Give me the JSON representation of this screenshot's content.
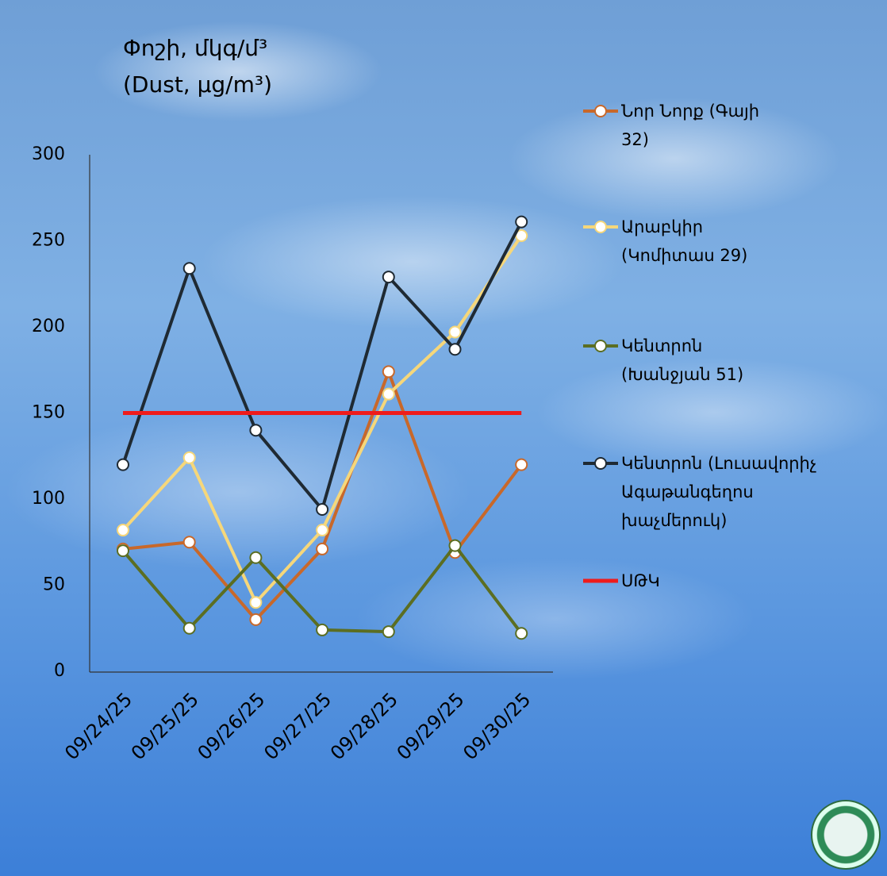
{
  "chart_data": {
    "type": "line",
    "title": "Փոշի, մկգ/մ³",
    "subtitle": "(Dust, µg/m³)",
    "categories": [
      "09/24/25",
      "09/25/25",
      "09/26/25",
      "09/27/25",
      "09/28/25",
      "09/29/25",
      "09/30/25"
    ],
    "series": [
      {
        "name": "Նոր Նորք (Գայի 32)",
        "color": "#c8682a",
        "values": [
          71,
          75,
          30,
          71,
          174,
          69,
          120
        ]
      },
      {
        "name": "Արաբկիր (Կոմիտաս 29)",
        "color": "#f6d77a",
        "values": [
          82,
          124,
          40,
          82,
          161,
          197,
          253
        ]
      },
      {
        "name": "Կենտրոն (Խանջյան 51)",
        "color": "#5b6e22",
        "values": [
          70,
          25,
          66,
          24,
          23,
          73,
          22
        ]
      },
      {
        "name": "Կենտրոն (Լուսավորիչ Ագաթանգեղոս խաչմերուկ)",
        "color": "#1f2a33",
        "values": [
          120,
          234,
          140,
          94,
          229,
          187,
          261
        ]
      },
      {
        "name": "ՍԹԿ",
        "color": "#ee1c1c",
        "values": [
          150,
          150,
          150,
          150,
          150,
          150,
          150
        ],
        "markers": false
      }
    ],
    "ylim": [
      0,
      300
    ],
    "yticks": [
      0,
      50,
      100,
      150,
      200,
      250,
      300
    ],
    "grid": false,
    "legend": "right"
  }
}
